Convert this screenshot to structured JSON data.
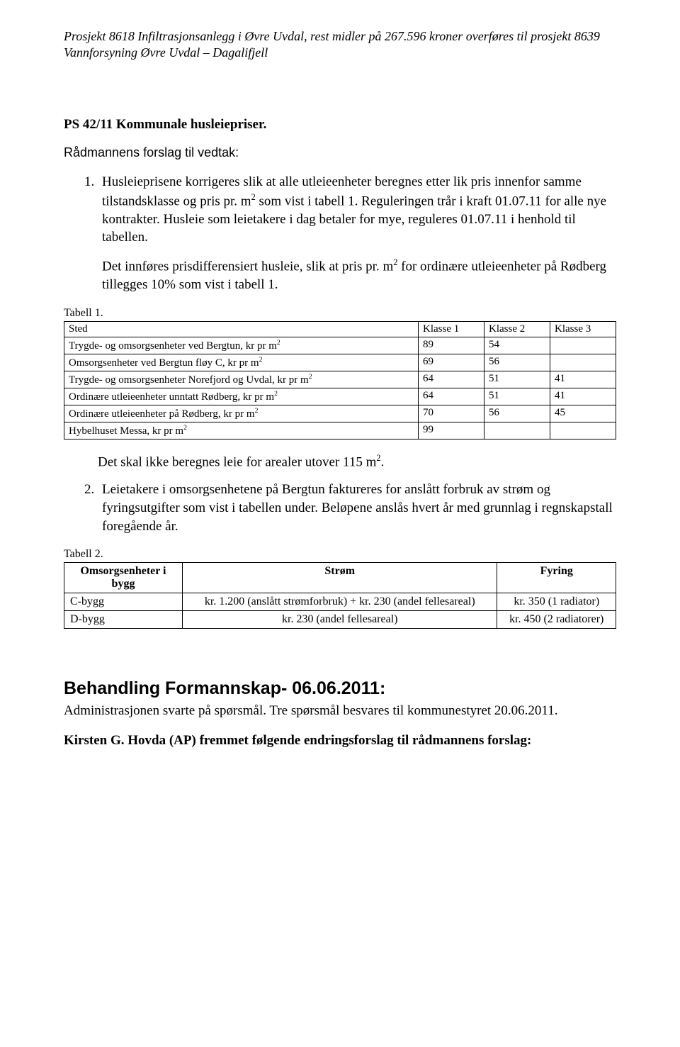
{
  "header_italic": "Prosjekt 8618 Infiltrasjonsanlegg i Øvre Uvdal, rest midler på 267.596 kroner overføres til prosjekt 8639 Vannforsyning Øvre Uvdal – Dagalifjell",
  "ps_title": "PS 42/11 Kommunale husleiepriser.",
  "raadmann_heading": "Rådmannens forslag til vedtak:",
  "item1_p1_a": "Husleieprisene korrigeres slik at alle utleieenheter beregnes etter lik pris innenfor samme tilstandsklasse og pris pr. m",
  "item1_p1_b": " som vist i tabell 1. Reguleringen trår i kraft 01.07.11 for alle nye kontrakter. Husleie som leietakere i dag betaler for mye, reguleres 01.07.11 i henhold til tabellen.",
  "item1_p2_a": "Det innføres prisdifferensiert husleie, slik at pris pr. m",
  "item1_p2_b": " for ordinære utleieenheter på Rødberg tillegges 10% som vist i tabell 1.",
  "tabell1_label": "Tabell 1.",
  "t1_headers": [
    "Sted",
    "Klasse 1",
    "Klasse 2",
    "Klasse 3"
  ],
  "t1_rows": [
    {
      "sted_a": "Trygde- og omsorgsenheter ved Bergtun, kr pr m",
      "k1": "89",
      "k2": "54",
      "k3": ""
    },
    {
      "sted_a": "Omsorgsenheter ved Bergtun fløy C, kr pr m",
      "k1": "69",
      "k2": "56",
      "k3": ""
    },
    {
      "sted_a": "Trygde- og omsorgsenheter Norefjord og Uvdal, kr pr m",
      "k1": "64",
      "k2": "51",
      "k3": "41"
    },
    {
      "sted_a": "Ordinære utleieenheter unntatt Rødberg, kr pr m",
      "k1": "64",
      "k2": "51",
      "k3": "41"
    },
    {
      "sted_a": "Ordinære utleieenheter på Rødberg, kr pr m",
      "k1": "70",
      "k2": "56",
      "k3": "45"
    },
    {
      "sted_a": "Hybelhuset Messa, kr pr m",
      "k1": "99",
      "k2": "",
      "k3": ""
    }
  ],
  "area_line_a": "Det skal ikke beregnes leie for arealer utover 115 m",
  "area_line_b": ".",
  "item2": "Leietakere i omsorgsenhetene på Bergtun faktureres for anslått forbruk av strøm og fyringsutgifter som vist i tabellen under. Beløpene anslås hvert år med grunnlag i regnskapstall foregående år.",
  "tabell2_label": "Tabell 2.",
  "t2_headers": [
    "Omsorgsenheter i bygg",
    "Strøm",
    "Fyring"
  ],
  "t2_rows": [
    {
      "a": "C-bygg",
      "b": "kr. 1.200 (anslått strømforbruk) + kr. 230 (andel fellesareal)",
      "c": "kr. 350 (1 radiator)"
    },
    {
      "a": "D-bygg",
      "b": "kr. 230 (andel fellesareal)",
      "c": "kr. 450 (2 radiatorer)"
    }
  ],
  "behandling_heading": "Behandling   Formannskap- 06.06.2011:",
  "behandling_body": "Administrasjonen svarte på spørsmål. Tre spørsmål besvares til kommunestyret 20.06.2011.",
  "kirsten_line": "Kirsten G. Hovda (AP) fremmet følgende endringsforslag til rådmannens forslag:",
  "sup2": "2"
}
